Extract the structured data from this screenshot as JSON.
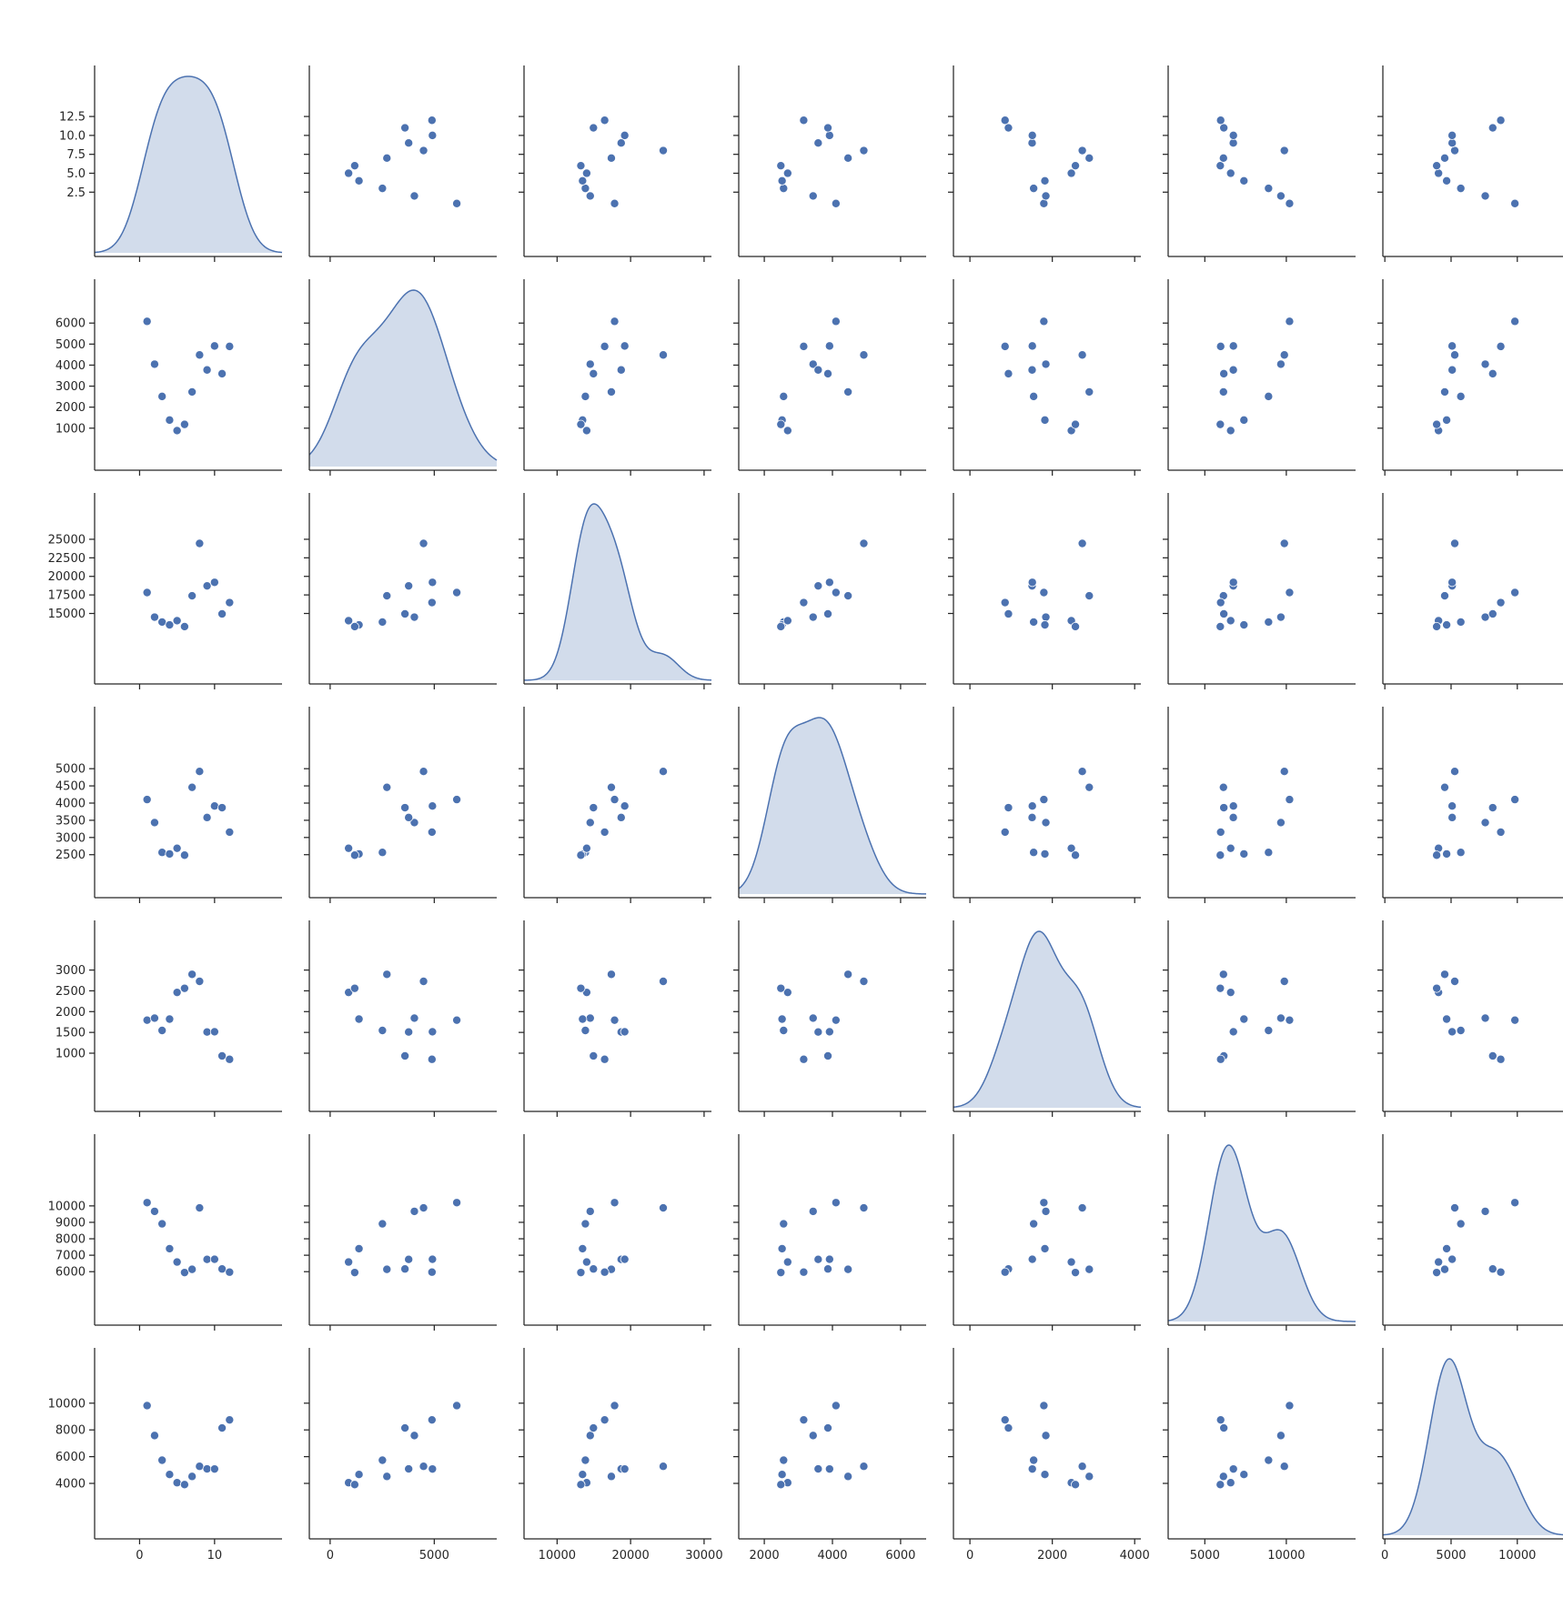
{
  "chart_data": {
    "type": "scatter",
    "kind": "pairplot",
    "title": "",
    "diag_kind": "kde",
    "grid": false,
    "legend": "none",
    "color": "#4c72b0",
    "variables": [
      {
        "key": "v0",
        "label": "",
        "ylabel": "",
        "lim": [
          -6,
          19
        ],
        "ticks": [
          2.5,
          5.0,
          7.5,
          10.0,
          12.5
        ],
        "xticks": [
          0,
          10
        ]
      },
      {
        "key": "v1",
        "label": "",
        "ylabel": "",
        "lim": [
          -1000,
          8000
        ],
        "ticks": [
          1000,
          2000,
          3000,
          4000,
          5000,
          6000
        ],
        "xticks": [
          0,
          5000
        ]
      },
      {
        "key": "v2",
        "label": "",
        "ylabel": "",
        "lim": [
          5500,
          31000
        ],
        "ticks": [
          15000,
          17500,
          20000,
          22500,
          25000
        ],
        "xticks": [
          10000,
          20000,
          30000
        ]
      },
      {
        "key": "v3",
        "label": "",
        "ylabel": "",
        "lim": [
          1250,
          6750
        ],
        "ticks": [
          2500,
          3000,
          3500,
          4000,
          4500,
          5000
        ],
        "xticks": [
          2000,
          4000,
          6000
        ]
      },
      {
        "key": "v4",
        "label": "",
        "ylabel": "",
        "lim": [
          -400,
          4150
        ],
        "ticks": [
          1000,
          1500,
          2000,
          2500,
          3000
        ],
        "xticks": [
          0,
          2000,
          4000
        ]
      },
      {
        "key": "v5",
        "label": "",
        "ylabel": "",
        "lim": [
          2750,
          14250
        ],
        "ticks": [
          6000,
          7000,
          8000,
          9000,
          10000
        ],
        "xticks": [
          5000,
          10000
        ]
      },
      {
        "key": "v6",
        "label": "",
        "ylabel": "",
        "lim": [
          -150,
          14000
        ],
        "ticks": [
          4000,
          6000,
          8000,
          10000
        ],
        "xticks": [
          0,
          5000,
          10000
        ]
      }
    ],
    "records": [
      [
        1,
        6081,
        17822,
        4103,
        1795,
        10199,
        9818
      ],
      [
        2,
        4045,
        14508,
        3433,
        1843,
        9667,
        7580
      ],
      [
        3,
        2510,
        13844,
        2566,
        1547,
        8909,
        5734
      ],
      [
        4,
        1385,
        13464,
        2522,
        1820,
        7399,
        4666
      ],
      [
        5,
        885,
        14027,
        2687,
        2462,
        6587,
        4052
      ],
      [
        6,
        1180,
        13230,
        2486,
        2561,
        5949,
        3912
      ],
      [
        7,
        2725,
        17381,
        4458,
        2897,
        6143,
        4520
      ],
      [
        8,
        4485,
        24440,
        4920,
        2728,
        9880,
        5277
      ],
      [
        9,
        3770,
        18719,
        3581,
        1510,
        6748,
        5083
      ],
      [
        10,
        4912,
        19198,
        3915,
        1515,
        6754,
        5079
      ],
      [
        11,
        3592,
        14944,
        3867,
        935,
        6165,
        8146
      ],
      [
        12,
        4890,
        16470,
        3156,
        853,
        5972,
        8751
      ]
    ]
  }
}
